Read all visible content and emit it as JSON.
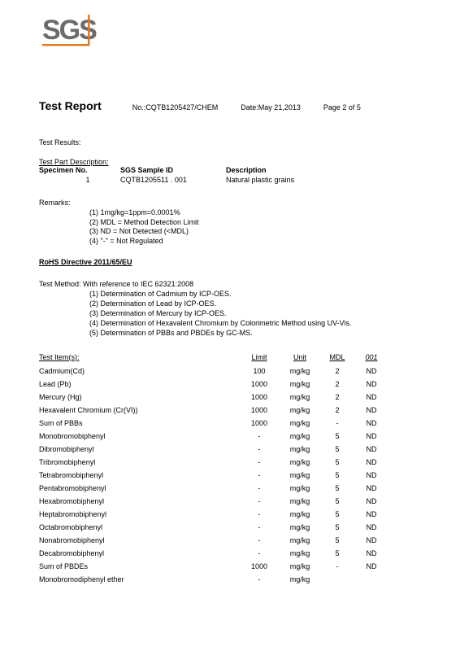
{
  "logo": {
    "text": "SGS",
    "color": "#6b6b6b",
    "accent": "#e07a1e"
  },
  "header": {
    "title": "Test Report",
    "report_no": "No.:CQTB1205427/CHEM",
    "date": "Date:May 21,2013",
    "page": "Page 2 of 5"
  },
  "labels": {
    "test_results": "Test Results:",
    "test_part_description": "Test Part Description:",
    "specimen_no": "Specimen No.",
    "sgs_sample_id": "SGS Sample ID",
    "description": "Description",
    "remarks": "Remarks:",
    "directive": "RoHS Directive 2011/65/EU",
    "test_method_intro": "Test Method: With reference to IEC 62321:2008",
    "results_headers": {
      "item": "Test Item(s):",
      "limit": "Limit",
      "unit": "Unit",
      "mdl": "MDL",
      "col001": "001"
    }
  },
  "specimen": {
    "no": "1",
    "sample_id": "CQTB1205511 . 001",
    "description": "Natural plastic grains"
  },
  "remarks": [
    "(1)   1mg/kg=1ppm=0.0001%",
    "(2)   MDL = Method Detection Limit",
    "(3)   ND = Not Detected (<MDL)",
    "(4)   \"-\" = Not Regulated"
  ],
  "methods": [
    "(1) Determination of Cadmium by ICP-OES.",
    "(2) Determination of Lead by ICP-OES.",
    "(3) Determination of Mercury by ICP-OES.",
    "(4) Determination of Hexavalent Chromium by Colorimetric Method using UV-Vis.",
    "(5) Determination of PBBs and PBDEs by GC-MS."
  ],
  "results": [
    {
      "item": "Cadmium(Cd)",
      "limit": "100",
      "unit": "mg/kg",
      "mdl": "2",
      "v": "ND"
    },
    {
      "item": "Lead (Pb)",
      "limit": "1000",
      "unit": "mg/kg",
      "mdl": "2",
      "v": "ND"
    },
    {
      "item": "Mercury (Hg)",
      "limit": "1000",
      "unit": "mg/kg",
      "mdl": "2",
      "v": "ND"
    },
    {
      "item": "Hexavalent Chromium (Cr(VI))",
      "limit": "1000",
      "unit": "mg/kg",
      "mdl": "2",
      "v": "ND"
    },
    {
      "item": "Sum of PBBs",
      "limit": "1000",
      "unit": "mg/kg",
      "mdl": "-",
      "v": "ND"
    },
    {
      "item": "Monobromobiphenyl",
      "limit": "-",
      "unit": "mg/kg",
      "mdl": "5",
      "v": "ND"
    },
    {
      "item": "Dibromobiphenyl",
      "limit": "-",
      "unit": "mg/kg",
      "mdl": "5",
      "v": "ND"
    },
    {
      "item": "Tribromobiphenyl",
      "limit": "-",
      "unit": "mg/kg",
      "mdl": "5",
      "v": "ND"
    },
    {
      "item": "Tetrabromobiphenyl",
      "limit": "-",
      "unit": "mg/kg",
      "mdl": "5",
      "v": "ND"
    },
    {
      "item": "Pentabromobiphenyl",
      "limit": "-",
      "unit": "mg/kg",
      "mdl": "5",
      "v": "ND"
    },
    {
      "item": "Hexabromobiphenyl",
      "limit": "-",
      "unit": "mg/kg",
      "mdl": "5",
      "v": "ND"
    },
    {
      "item": "Heptabromobiphenyl",
      "limit": "-",
      "unit": "mg/kg",
      "mdl": "5",
      "v": "ND"
    },
    {
      "item": "Octabromobiphenyl",
      "limit": "-",
      "unit": "mg/kg",
      "mdl": "5",
      "v": "ND"
    },
    {
      "item": "Nonabromobiphenyl",
      "limit": "-",
      "unit": "mg/kg",
      "mdl": "5",
      "v": "ND"
    },
    {
      "item": "Decabromobiphenyl",
      "limit": "-",
      "unit": "mg/kg",
      "mdl": "5",
      "v": "ND"
    },
    {
      "item": "Sum of PBDEs",
      "limit": "1000",
      "unit": "mg/kg",
      "mdl": "-",
      "v": "ND"
    },
    {
      "item": "Monobromodiphenyl ether",
      "limit": "-",
      "unit": "mg/kg",
      "mdl": "",
      "v": ""
    }
  ]
}
